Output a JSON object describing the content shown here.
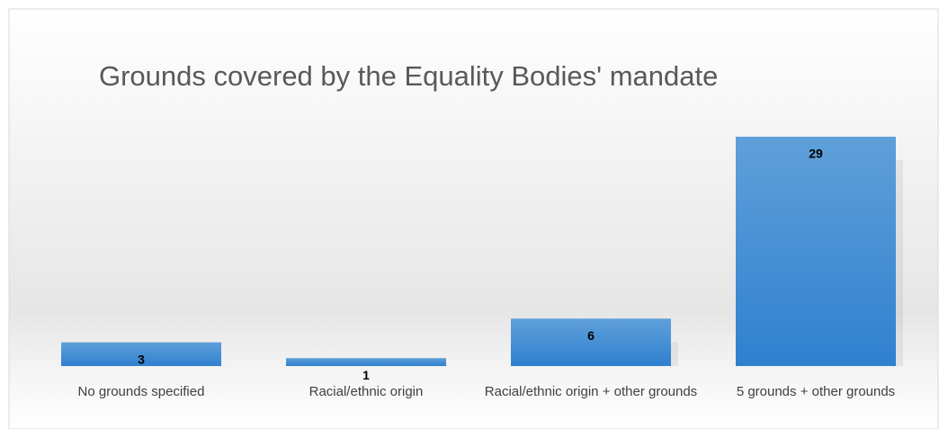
{
  "chart_data": {
    "type": "bar",
    "title": "Grounds covered by the Equality Bodies' mandate",
    "categories": [
      "No grounds specified",
      "Racial/ethnic origin",
      "Racial/ethnic origin + other grounds",
      "5 grounds + other grounds"
    ],
    "values": [
      3,
      1,
      6,
      29
    ],
    "color": "#5b9bd5"
  }
}
